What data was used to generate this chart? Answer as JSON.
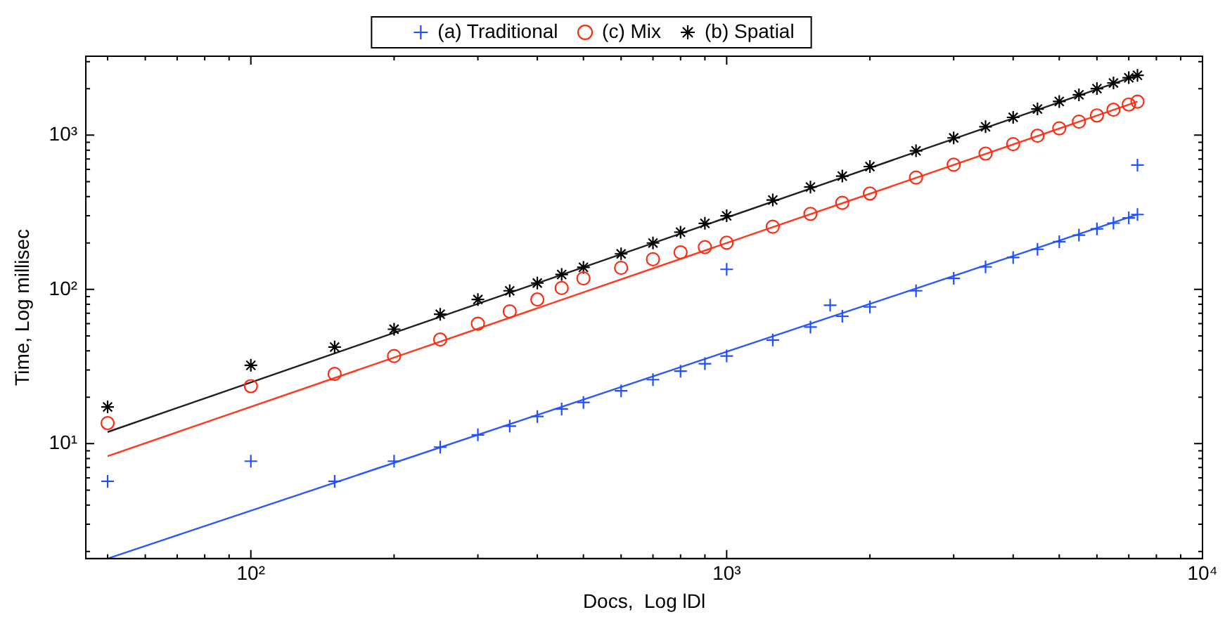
{
  "chart_data": {
    "type": "scatter",
    "xlabel": "Docs,  Log lDl",
    "ylabel": "Time, Log millisec",
    "log": "xy",
    "grid": false,
    "legend": "top",
    "xlim": [
      45,
      10000
    ],
    "ylim": [
      1.8,
      3250
    ],
    "xticks": [
      {
        "value": 50,
        "label": null
      },
      {
        "value": 60,
        "label": null
      },
      {
        "value": 70,
        "label": null
      },
      {
        "value": 80,
        "label": null
      },
      {
        "value": 90,
        "label": null
      },
      {
        "value": 100,
        "label": "10²"
      },
      {
        "value": 200,
        "label": null
      },
      {
        "value": 300,
        "label": null
      },
      {
        "value": 400,
        "label": null
      },
      {
        "value": 500,
        "label": null
      },
      {
        "value": 600,
        "label": null
      },
      {
        "value": 700,
        "label": null
      },
      {
        "value": 800,
        "label": null
      },
      {
        "value": 900,
        "label": null
      },
      {
        "value": 1000,
        "label": "10³"
      },
      {
        "value": 2000,
        "label": null
      },
      {
        "value": 3000,
        "label": null
      },
      {
        "value": 4000,
        "label": null
      },
      {
        "value": 5000,
        "label": null
      },
      {
        "value": 6000,
        "label": null
      },
      {
        "value": 7000,
        "label": null
      },
      {
        "value": 8000,
        "label": null
      },
      {
        "value": 9000,
        "label": null
      },
      {
        "value": 10000,
        "label": "10⁴"
      }
    ],
    "yticks": [
      {
        "value": 2,
        "label": null
      },
      {
        "value": 3,
        "label": null
      },
      {
        "value": 4,
        "label": null
      },
      {
        "value": 5,
        "label": null
      },
      {
        "value": 6,
        "label": null
      },
      {
        "value": 7,
        "label": null
      },
      {
        "value": 8,
        "label": null
      },
      {
        "value": 9,
        "label": null
      },
      {
        "value": 10,
        "label": "10¹"
      },
      {
        "value": 20,
        "label": null
      },
      {
        "value": 30,
        "label": null
      },
      {
        "value": 40,
        "label": null
      },
      {
        "value": 50,
        "label": null
      },
      {
        "value": 60,
        "label": null
      },
      {
        "value": 70,
        "label": null
      },
      {
        "value": 80,
        "label": null
      },
      {
        "value": 90,
        "label": null
      },
      {
        "value": 100,
        "label": "10²"
      },
      {
        "value": 200,
        "label": null
      },
      {
        "value": 300,
        "label": null
      },
      {
        "value": 400,
        "label": null
      },
      {
        "value": 500,
        "label": null
      },
      {
        "value": 600,
        "label": null
      },
      {
        "value": 700,
        "label": null
      },
      {
        "value": 800,
        "label": null
      },
      {
        "value": 900,
        "label": null
      },
      {
        "value": 1000,
        "label": "10³"
      },
      {
        "value": 2000,
        "label": null
      },
      {
        "value": 3000,
        "label": null
      }
    ],
    "series": [
      {
        "name": "(a) Traditional",
        "color": "#1f4fff",
        "marker": "cross",
        "x": [
          50,
          100,
          150,
          200,
          250,
          300,
          350,
          400,
          450,
          500,
          600,
          700,
          800,
          900,
          1000,
          1000,
          1250,
          1500,
          1650,
          1750,
          2000,
          2500,
          3000,
          3500,
          4000,
          4500,
          5000,
          5500,
          6000,
          6500,
          7000,
          7300,
          7300
        ],
        "values": [
          5.7,
          7.7,
          5.7,
          7.7,
          9.5,
          11.4,
          13,
          15,
          16.8,
          18.5,
          22,
          26,
          29.5,
          33,
          37,
          135,
          47,
          57,
          79,
          67,
          77,
          98,
          118,
          140,
          161,
          182,
          204,
          225,
          247,
          269,
          291,
          306,
          640
        ]
      },
      {
        "name": "(c) Mix",
        "color": "#ff2a10",
        "marker": "circle",
        "x": [
          50,
          100,
          150,
          200,
          250,
          300,
          350,
          400,
          450,
          500,
          600,
          700,
          800,
          900,
          1000,
          1250,
          1500,
          1750,
          2000,
          2500,
          3000,
          3500,
          4000,
          4500,
          5000,
          5500,
          6000,
          6500,
          7000,
          7300
        ],
        "values": [
          13.6,
          23.6,
          28.3,
          37,
          47.3,
          60,
          72,
          86,
          102,
          118,
          138,
          157,
          174,
          188,
          201,
          255,
          309,
          364,
          419,
          531,
          643,
          760,
          874,
          991,
          1108,
          1224,
          1343,
          1461,
          1580,
          1650
        ]
      },
      {
        "name": "(b) Spatial",
        "color": "#000000",
        "x": [
          50,
          100,
          150,
          200,
          250,
          300,
          350,
          400,
          450,
          500,
          600,
          700,
          800,
          900,
          1000,
          1250,
          1500,
          1750,
          2000,
          2500,
          3000,
          3500,
          4000,
          4500,
          5000,
          5500,
          6000,
          6500,
          7000,
          7300
        ],
        "values": [
          17.3,
          32.2,
          42.3,
          55.2,
          69,
          86,
          98,
          110,
          125,
          139,
          170,
          200,
          235,
          268,
          300,
          380,
          461,
          543,
          626,
          792,
          960,
          1134,
          1305,
          1479,
          1653,
          1827,
          2004,
          2181,
          2358,
          2445
        ]
      },
      {
        "type": "line",
        "color": "#2a58ff",
        "marker": "none",
        "line_style": "solid",
        "x": [
          50,
          7300
        ],
        "values": [
          1.8,
          306
        ]
      },
      {
        "type": "line",
        "color": "#ff3a20",
        "marker": "none",
        "line_style": "solid",
        "x": [
          50,
          7300
        ],
        "values": [
          8.3,
          1650
        ]
      },
      {
        "type": "line",
        "color": "#202020",
        "marker": "none",
        "line_style": "solid",
        "x": [
          50,
          7300
        ],
        "values": [
          11.9,
          2445
        ]
      }
    ]
  }
}
